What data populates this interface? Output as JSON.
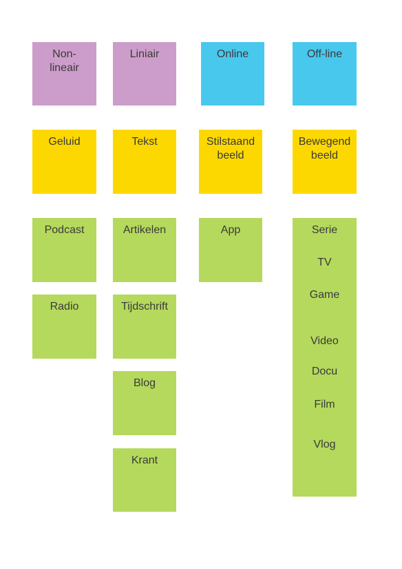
{
  "row1": [
    "Non-\nlineair",
    "Liniair",
    "Online",
    "Off-line"
  ],
  "row2": [
    "Geluid",
    "Tekst",
    "Stilstaand\nbeeld",
    "Bewegend\nbeeld"
  ],
  "geluid": [
    "Podcast",
    "Radio"
  ],
  "tekst": [
    "Artikelen",
    "Tijdschrift",
    "Blog",
    "Krant"
  ],
  "stilstaand": [
    "App"
  ],
  "bewegend": [
    "Serie",
    "TV",
    "Game",
    "Video",
    "Docu",
    "Film",
    "Vlog"
  ],
  "colors": {
    "purple": "#cc9dca",
    "blue": "#49c8ee",
    "yellow": "#fdd800",
    "green": "#b5d95c"
  }
}
